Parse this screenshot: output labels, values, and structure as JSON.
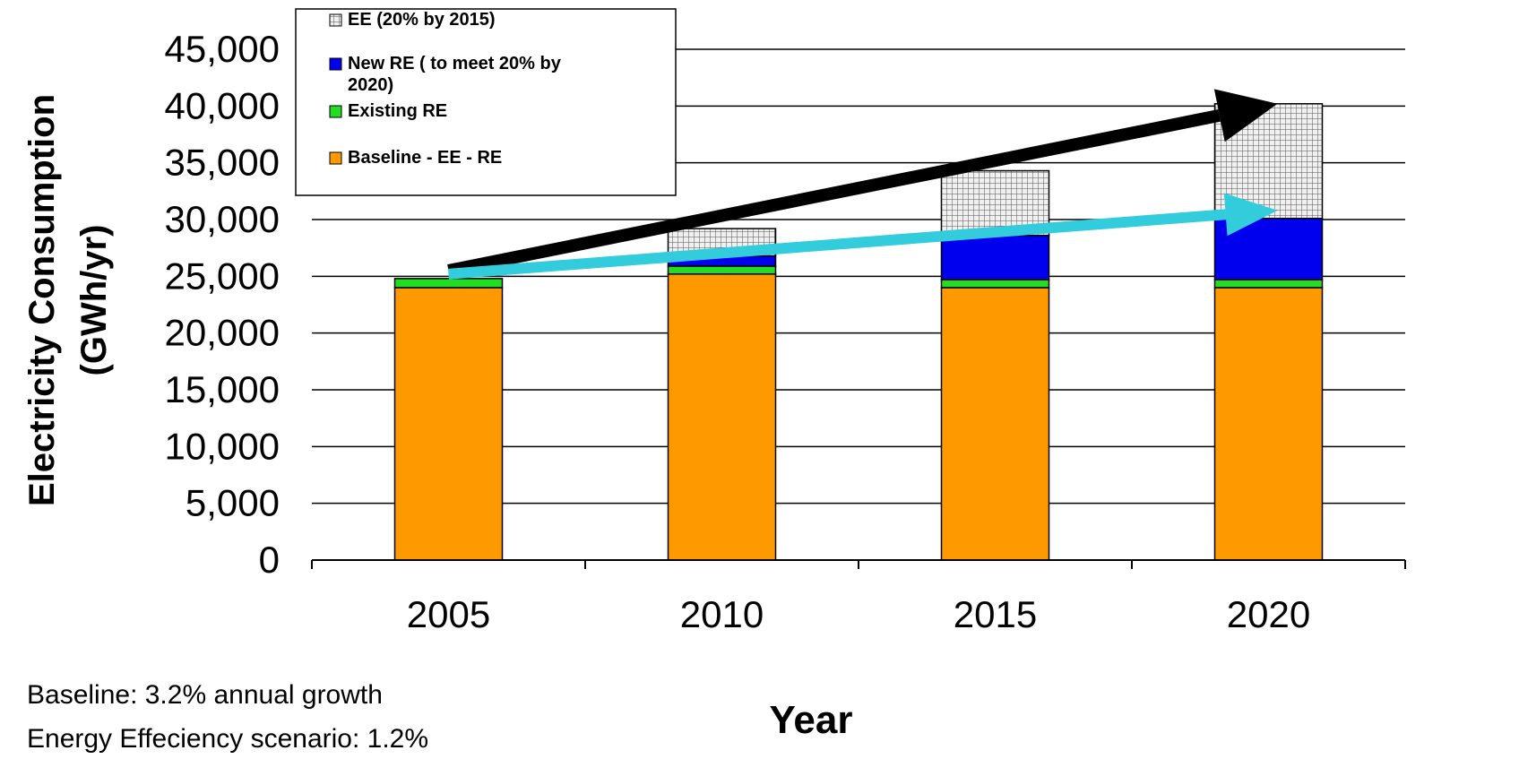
{
  "chart_data": {
    "type": "bar",
    "stacked": true,
    "categories": [
      "2005",
      "2010",
      "2015",
      "2020"
    ],
    "series": [
      {
        "name": "Baseline - EE - RE",
        "color": "#FF9900",
        "pattern": "solid",
        "values": [
          24000,
          25200,
          24000,
          24000
        ]
      },
      {
        "name": "Existing RE",
        "color": "#22DD22",
        "pattern": "solid",
        "values": [
          800,
          700,
          700,
          700
        ]
      },
      {
        "name": "New RE ( to meet 20% by 2020)",
        "color": "#0000EE",
        "pattern": "solid",
        "values": [
          0,
          900,
          3900,
          5400
        ]
      },
      {
        "name": "EE (20% by 2015)",
        "color": "#BBBBBB",
        "pattern": "grid",
        "values": [
          0,
          2400,
          5700,
          10100
        ]
      }
    ],
    "ylabel": "Electricity Consumption (GWh/yr)",
    "ylabel_line1": "Electricity Consumption",
    "ylabel_line2": "(GWh/yr)",
    "xlabel": "Year",
    "ylim": [
      0,
      45000
    ],
    "yticks": [
      0,
      5000,
      10000,
      15000,
      20000,
      25000,
      30000,
      35000,
      40000,
      45000
    ],
    "ytick_labels": [
      "0",
      "5,000",
      "10,000",
      "15,000",
      "20,000",
      "25,000",
      "30,000",
      "35,000",
      "40,000",
      "45,000"
    ],
    "grid": true,
    "legend_position": "top-left",
    "legend_entries": [
      {
        "lines": [
          "EE (20% by 2015)"
        ],
        "series": 3
      },
      {
        "lines": [
          "New RE ( to meet 20% by",
          "2020)"
        ],
        "series": 2
      },
      {
        "lines": [
          "Existing RE"
        ],
        "series": 1
      },
      {
        "lines": [
          "Baseline - EE - RE"
        ],
        "series": 0
      }
    ],
    "trend_arrows": [
      {
        "label": "Baseline trend",
        "color": "#000000",
        "from": {
          "x": "2005",
          "y": 25500
        },
        "to": {
          "x": "2020",
          "y": 40200
        }
      },
      {
        "label": "EE scenario trend",
        "color": "#33CCDD",
        "from": {
          "x": "2005",
          "y": 25200
        },
        "to": {
          "x": "2020",
          "y": 30800
        }
      }
    ],
    "notes": [
      "Baseline: 3.2% annual growth",
      "Energy Effeciency scenario: 1.2%"
    ]
  }
}
